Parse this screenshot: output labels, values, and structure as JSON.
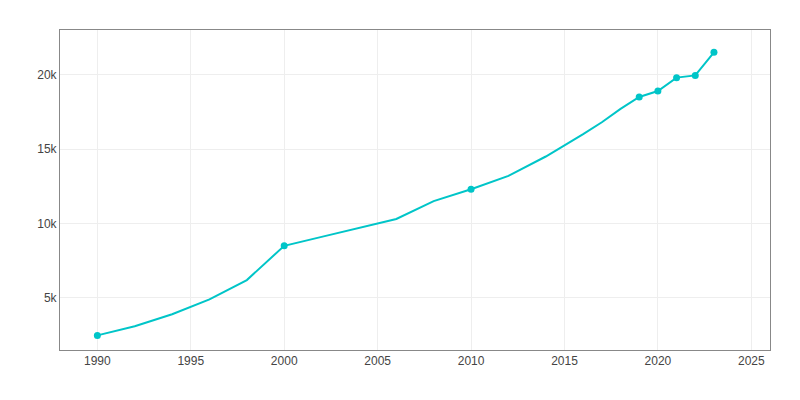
{
  "chart_data": {
    "type": "line",
    "x": [
      1990,
      1992,
      1994,
      1996,
      1998,
      2000,
      2002,
      2004,
      2006,
      2008,
      2010,
      2012,
      2014,
      2016,
      2017,
      2018,
      2019,
      2020,
      2021,
      2022,
      2023
    ],
    "series": [
      {
        "type": "line",
        "color": "#00c5c8",
        "values": [
          2481,
          3100,
          3900,
          4900,
          6200,
          8500,
          9100,
          9700,
          10300,
          11500,
          12300,
          13200,
          14500,
          16000,
          16800,
          17700,
          18500,
          18900,
          19800,
          19950,
          21500
        ]
      },
      {
        "type": "scatter",
        "marker": "circle",
        "color": "#00c5c8",
        "values": [
          2481,
          null,
          null,
          null,
          null,
          8500,
          null,
          null,
          null,
          null,
          12300,
          null,
          null,
          null,
          null,
          null,
          18500,
          18900,
          19800,
          19950,
          21500
        ]
      }
    ],
    "xlim": [
      1988,
      2026
    ],
    "ylim": [
      1500,
      23000
    ],
    "xticks": [
      1990,
      1995,
      2000,
      2005,
      2010,
      2015,
      2020,
      2025
    ],
    "yticks": [
      {
        "value": 5000,
        "label": "5k"
      },
      {
        "value": 10000,
        "label": "10k"
      },
      {
        "value": 15000,
        "label": "15k"
      },
      {
        "value": 20000,
        "label": "20k"
      }
    ],
    "grid": true
  }
}
